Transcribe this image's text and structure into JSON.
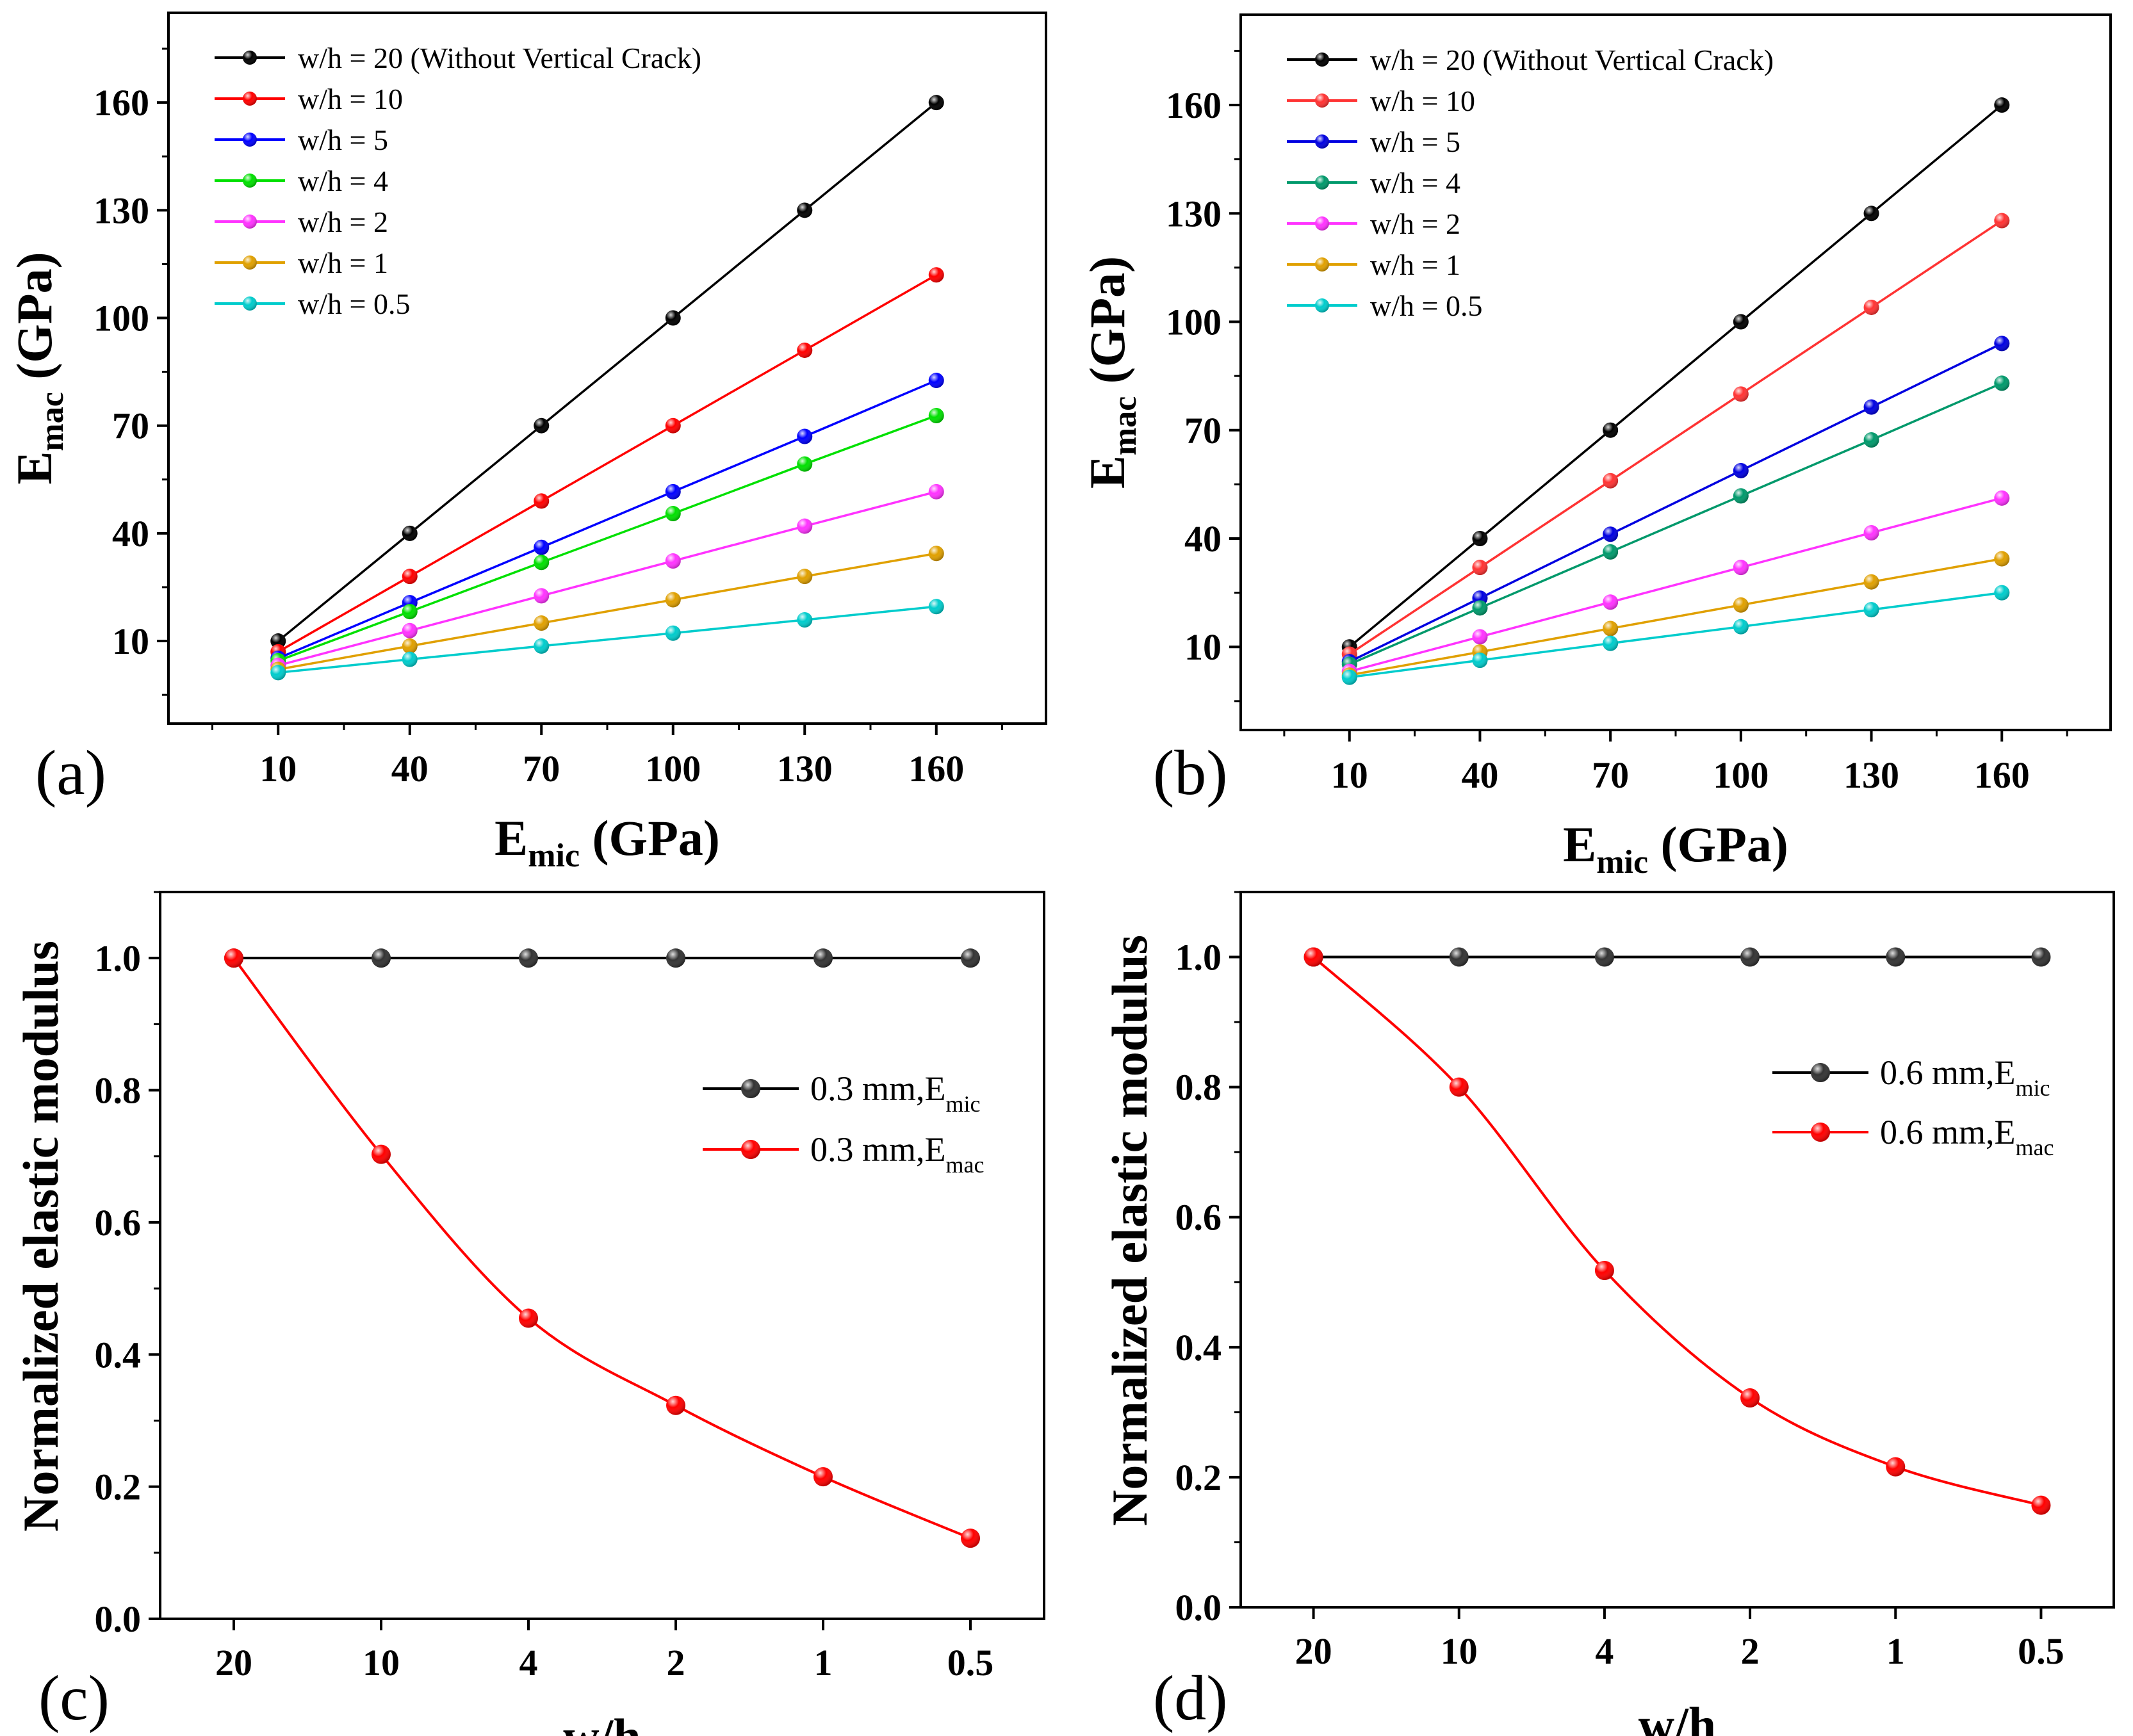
{
  "chart_data": [
    {
      "panel": "(a)",
      "type": "line",
      "xlabel": "E",
      "xlabel_sub": "mic",
      "xlabel_unit": " (GPa)",
      "ylabel": "E",
      "ylabel_sub": "mac",
      "ylabel_unit": " (GPa)",
      "x": [
        10,
        40,
        70,
        100,
        130,
        160
      ],
      "xticks": [
        "10",
        "40",
        "70",
        "100",
        "130",
        "160"
      ],
      "yticks": [
        "10",
        "40",
        "70",
        "100",
        "130",
        "160"
      ],
      "ytick_values": [
        10,
        40,
        70,
        100,
        130,
        160
      ],
      "xlim": [
        -15,
        185
      ],
      "ylim": [
        -13,
        185
      ],
      "series": [
        {
          "name": "w/h = 20",
          "note": "(Without Vertical Crack)",
          "color": "#000000",
          "values": [
            10,
            40,
            70,
            100,
            130,
            160
          ]
        },
        {
          "name": "w/h = 10",
          "color": "#ff0000",
          "values": [
            7,
            28,
            49,
            70,
            91,
            112
          ]
        },
        {
          "name": "w/h = 5",
          "color": "#0000ff",
          "values": [
            5.2,
            20.7,
            36.1,
            51.6,
            67,
            82.6
          ]
        },
        {
          "name": "w/h = 4",
          "color": "#00e000",
          "values": [
            4.5,
            18.2,
            31.9,
            45.5,
            59.3,
            72.8
          ]
        },
        {
          "name": "w/h = 2",
          "color": "#ff33ff",
          "values": [
            3.2,
            12.9,
            22.6,
            32.3,
            42,
            51.6
          ]
        },
        {
          "name": "w/h = 1",
          "color": "#e0a000",
          "values": [
            2.1,
            8.6,
            15,
            21.5,
            28,
            34.4
          ]
        },
        {
          "name": "w/h = 0.5",
          "color": "#00cccc",
          "values": [
            1.2,
            4.9,
            8.6,
            12.2,
            15.9,
            19.6
          ]
        }
      ]
    },
    {
      "panel": "(b)",
      "type": "line",
      "xlabel": "E",
      "xlabel_sub": "mic",
      "xlabel_unit": " (GPa)",
      "ylabel": "E",
      "ylabel_sub": "mac",
      "ylabel_unit": " (GPa)",
      "x": [
        10,
        40,
        70,
        100,
        130,
        160
      ],
      "xticks": [
        "10",
        "40",
        "70",
        "100",
        "130",
        "160"
      ],
      "yticks": [
        "10",
        "40",
        "70",
        "100",
        "130",
        "160"
      ],
      "ytick_values": [
        10,
        40,
        70,
        100,
        130,
        160
      ],
      "xlim": [
        -15,
        185
      ],
      "ylim": [
        -13,
        185
      ],
      "series": [
        {
          "name": "w/h = 20",
          "note": "(Without Vertical Crack)",
          "color": "#000000",
          "values": [
            10,
            40,
            70,
            100,
            130,
            160
          ]
        },
        {
          "name": "w/h = 10",
          "color": "#ff3333",
          "values": [
            8,
            32,
            56,
            80,
            104,
            128
          ]
        },
        {
          "name": "w/h = 5",
          "color": "#0000e0",
          "values": [
            5.9,
            23.5,
            41.2,
            58.8,
            76.4,
            94
          ]
        },
        {
          "name": "w/h = 4",
          "color": "#00996b",
          "values": [
            5.2,
            20.8,
            36.3,
            51.8,
            67.3,
            83
          ]
        },
        {
          "name": "w/h = 2",
          "color": "#ff33ff",
          "values": [
            3.2,
            12.8,
            22.4,
            32,
            41.6,
            51.2
          ]
        },
        {
          "name": "w/h = 1",
          "color": "#e0a000",
          "values": [
            2.2,
            8.6,
            15.1,
            21.6,
            28,
            34.4
          ]
        },
        {
          "name": "w/h = 0.5",
          "color": "#00cccc",
          "values": [
            1.6,
            6.3,
            11,
            15.6,
            20.3,
            25
          ]
        }
      ]
    },
    {
      "panel": "(c)",
      "type": "line",
      "xlabel": "w/h",
      "ylabel": "Normalized elastic modulus",
      "categories": [
        "20",
        "10",
        "4",
        "2",
        "1",
        "0.5"
      ],
      "yticks": [
        "0.0",
        "0.2",
        "0.4",
        "0.6",
        "0.8",
        "1.0"
      ],
      "ytick_values": [
        0,
        0.2,
        0.4,
        0.6,
        0.8,
        1.0
      ],
      "ylim": [
        -0.0,
        1.1
      ],
      "legend_position": "right",
      "series": [
        {
          "name": "0.3 mm,E",
          "sub": "mic",
          "color": "#000000",
          "values": [
            1,
            1,
            1,
            1,
            1,
            1
          ]
        },
        {
          "name": "0.3 mm,E",
          "sub": "mac",
          "color": "#ff0000",
          "values": [
            1,
            0.703,
            0.455,
            0.323,
            0.215,
            0.122
          ]
        }
      ]
    },
    {
      "panel": "(d)",
      "type": "line",
      "xlabel": "w/h",
      "ylabel": "Normalized elastic modulus",
      "categories": [
        "20",
        "10",
        "4",
        "2",
        "1",
        "0.5"
      ],
      "yticks": [
        "0.0",
        "0.2",
        "0.4",
        "0.6",
        "0.8",
        "1.0"
      ],
      "ytick_values": [
        0,
        0.2,
        0.4,
        0.6,
        0.8,
        1.0
      ],
      "ylim": [
        0.0,
        1.1
      ],
      "legend_position": "upper-right",
      "series": [
        {
          "name": "0.6 mm,E",
          "sub": "mic",
          "color": "#000000",
          "values": [
            1,
            1,
            1,
            1,
            1,
            1
          ]
        },
        {
          "name": "0.6 mm,E",
          "sub": "mac",
          "color": "#ff0000",
          "values": [
            1,
            0.8,
            0.518,
            0.322,
            0.216,
            0.157
          ]
        }
      ]
    }
  ]
}
